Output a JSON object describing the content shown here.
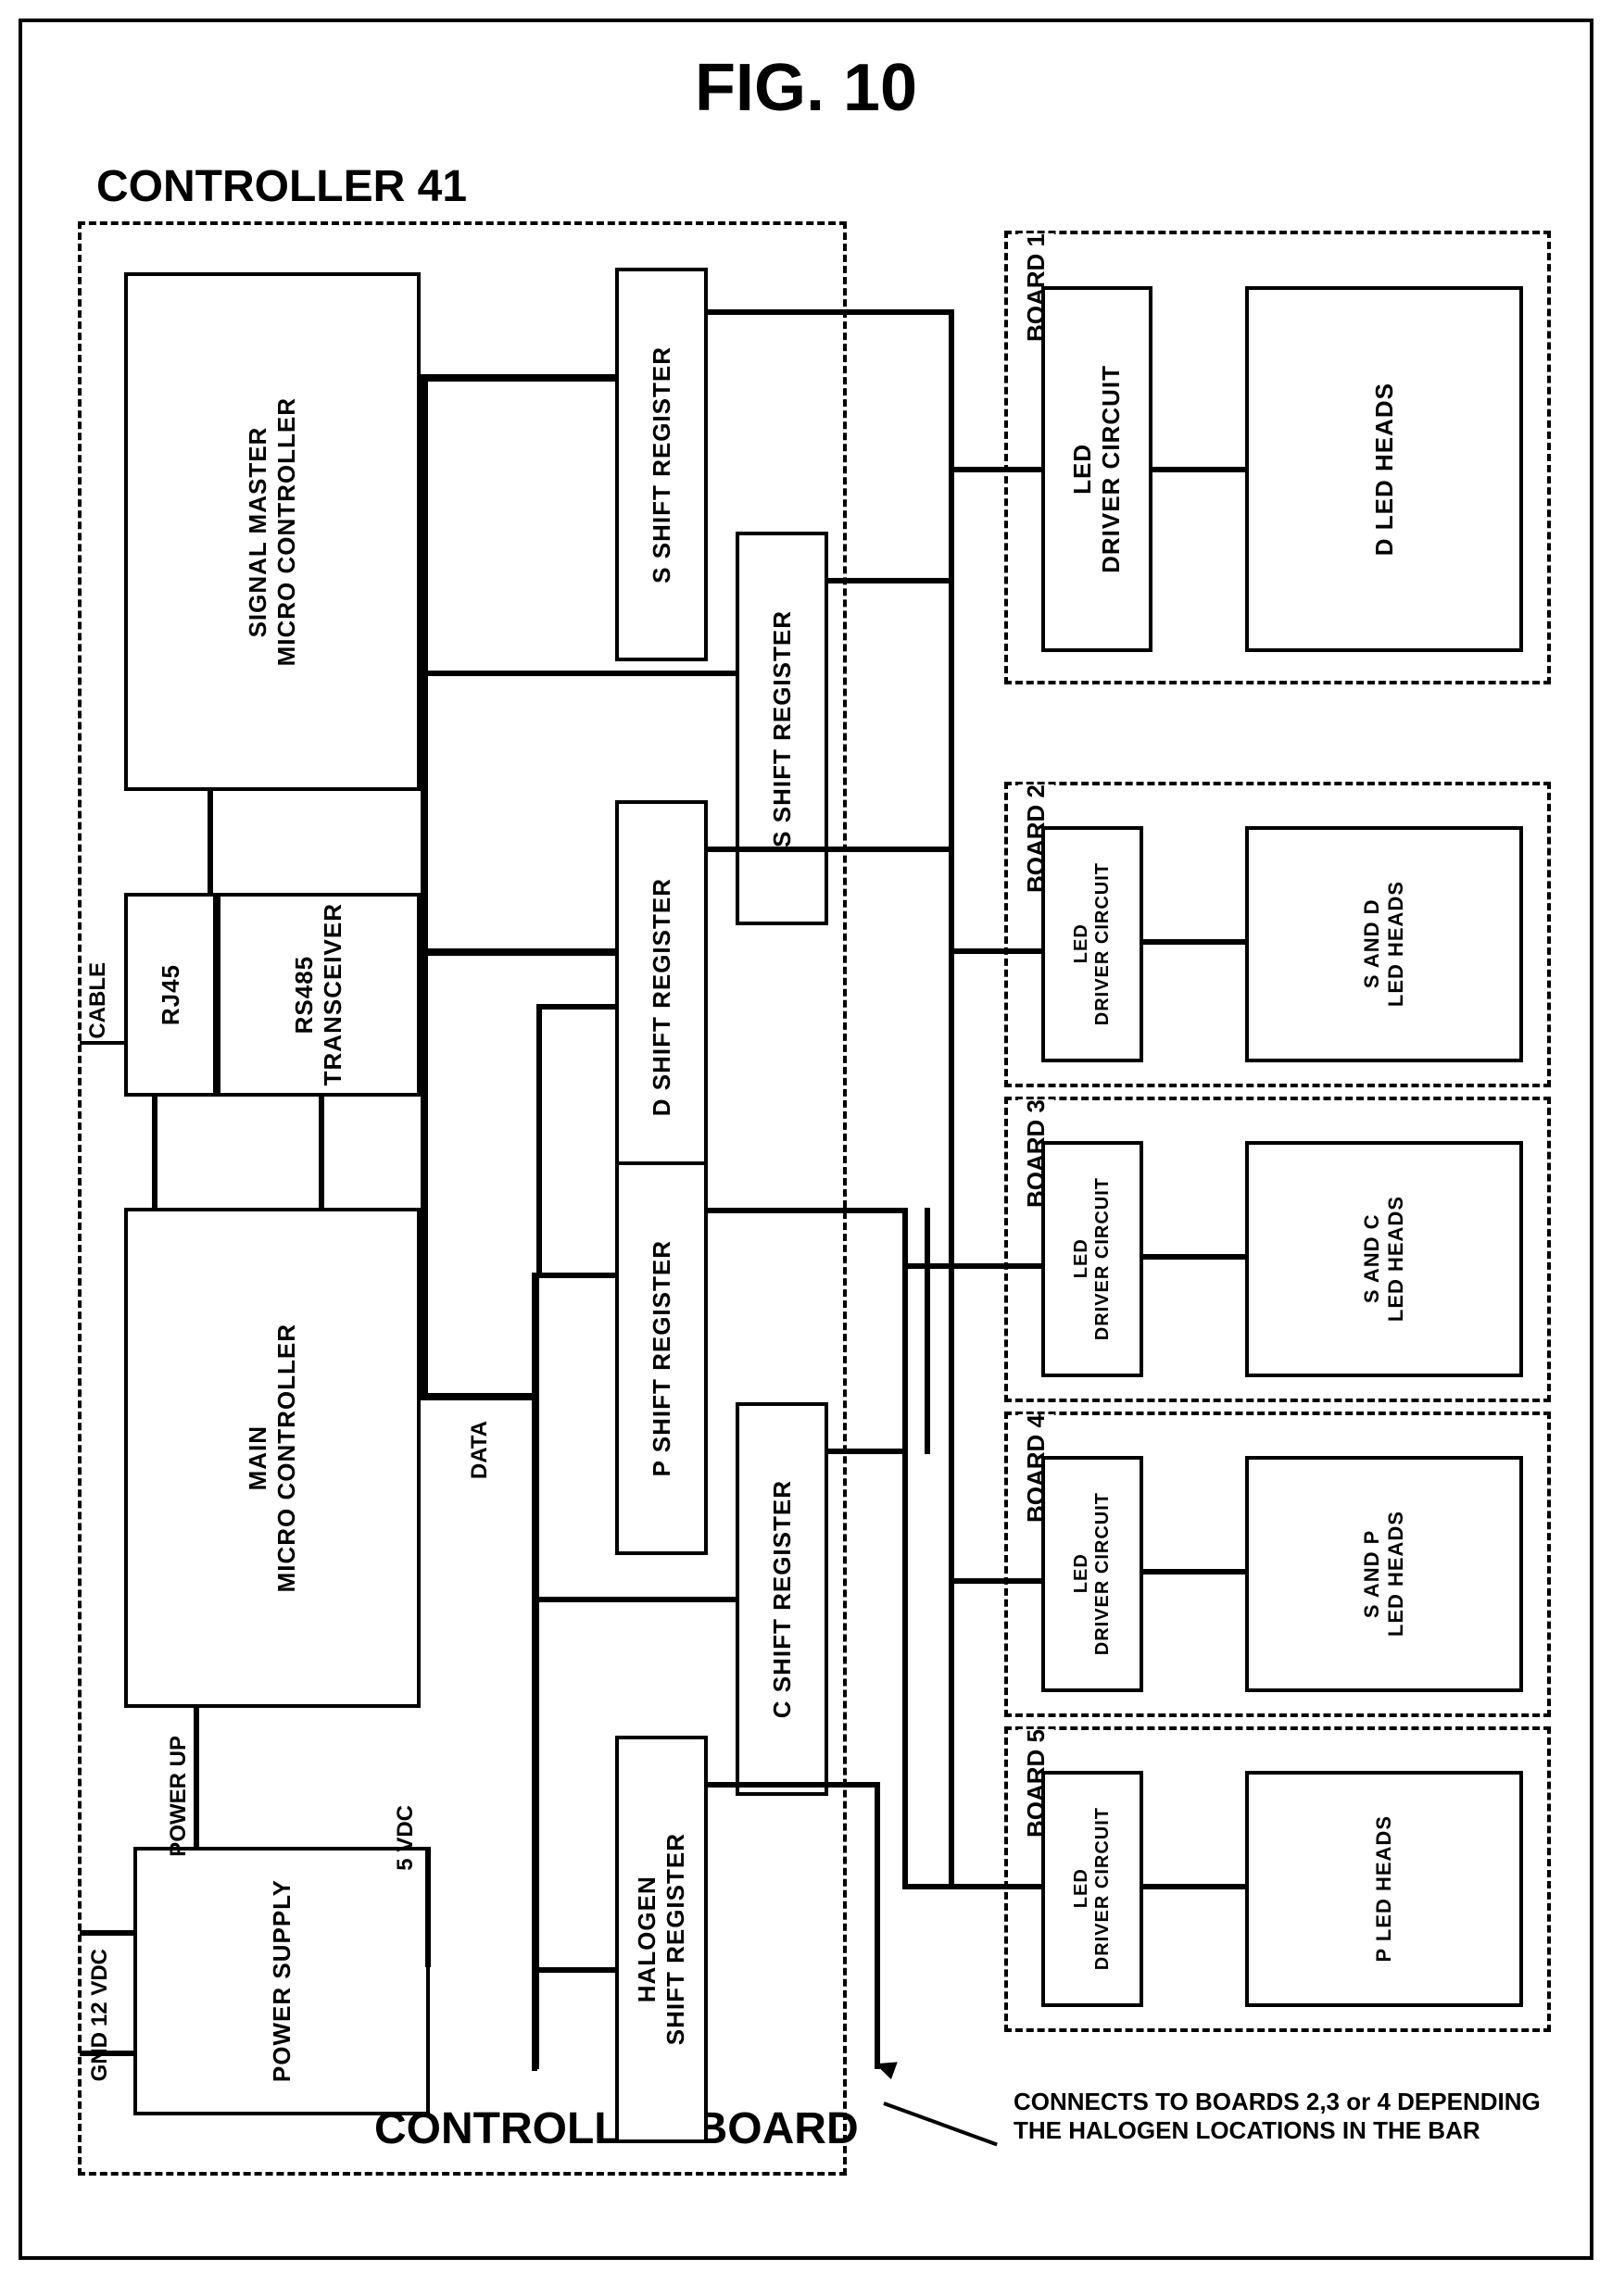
{
  "figure_title": "FIG. 10",
  "controller_label": "CONTROLLER 41",
  "controller_board_label": "CONTROLLER BOARD",
  "blocks": {
    "signal_master": "SIGNAL MASTER\nMICRO CONTROLLER",
    "rj45": "RJ45",
    "rs485": "RS485\nTRANSCEIVER",
    "main_micro": "MAIN\nMICRO CONTROLLER",
    "power_supply": "POWER SUPPLY",
    "s_shift_1": "S SHIFT REGISTER",
    "s_shift_2": "S SHIFT REGISTER",
    "d_shift": "D SHIFT REGISTER",
    "p_shift": "P SHIFT REGISTER",
    "c_shift": "C SHIFT REGISTER",
    "halogen_shift": "HALOGEN\nSHIFT REGISTER",
    "led_driver": "LED\nDRIVER CIRCUIT",
    "d_led_heads": "D LED HEADS",
    "s_and_d_heads": "S AND D\nLED HEADS",
    "s_and_c_heads": "S AND C\nLED HEADS",
    "s_and_p_heads": "S AND P\nLED HEADS",
    "p_led_heads": "P LED HEADS"
  },
  "labels": {
    "cable": "CABLE",
    "data": "DATA",
    "power_up": "POWER UP",
    "vdc12": "12 VDC",
    "gnd": "GND",
    "vdc5": "5 VDC",
    "board1": "BOARD 1",
    "board2": "BOARD 2",
    "board3": "BOARD 3",
    "board4": "BOARD 4",
    "board5": "BOARD 5"
  },
  "note": "CONNECTS TO BOARDS 2,3 or 4 DEPENDING\nTHE HALOGEN LOCATIONS IN THE BAR",
  "style": {
    "border_color": "#000000",
    "bg_color": "#ffffff",
    "font_family": "Arial",
    "line_thick": 6,
    "line_thin": 4
  }
}
